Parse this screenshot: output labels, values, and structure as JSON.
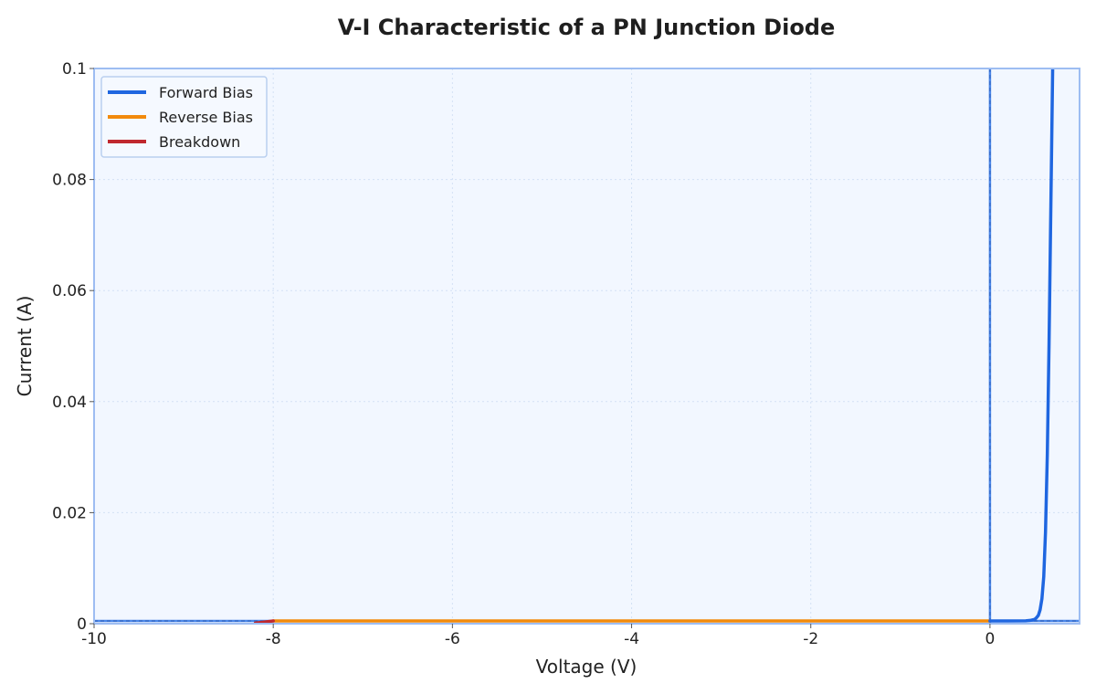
{
  "chart_data": {
    "type": "line",
    "title": "V-I Characteristic of a PN Junction Diode",
    "xlabel": "Voltage (V)",
    "ylabel": "Current (A)",
    "xlim": [
      -10,
      1
    ],
    "ylim": [
      0,
      0.1
    ],
    "x_ticks": [
      -10,
      -8,
      -6,
      -4,
      -2,
      0
    ],
    "x_tick_labels": [
      "-10",
      "-8",
      "-6",
      "-4",
      "-2",
      "0"
    ],
    "y_ticks": [
      0,
      0.02,
      0.04,
      0.06,
      0.08,
      0.1
    ],
    "y_tick_labels": [
      "0",
      "0.02",
      "0.04",
      "0.06",
      "0.08",
      "0.1"
    ],
    "grid": true,
    "legend_position": "top-left",
    "reference_lines": {
      "vertical_at_x": 0,
      "horizontal_at_y": 0
    },
    "series": [
      {
        "name": "Forward Bias",
        "color": "#1f66e0",
        "x": [
          0,
          0.2,
          0.4,
          0.45,
          0.5,
          0.52,
          0.54,
          0.56,
          0.58,
          0.6,
          0.62,
          0.64,
          0.66,
          0.68,
          0.7
        ],
        "y": [
          0,
          0,
          2e-05,
          0.0001,
          0.0003,
          0.0006,
          0.001,
          0.002,
          0.004,
          0.008,
          0.016,
          0.03,
          0.05,
          0.075,
          0.1
        ]
      },
      {
        "name": "Reverse Bias",
        "color": "#f28a0c",
        "x": [
          -8,
          -6,
          -4,
          -2,
          0
        ],
        "y": [
          0,
          0,
          0,
          0,
          0
        ]
      },
      {
        "name": "Breakdown",
        "color": "#c0282e",
        "x": [
          -8.2,
          -8.1,
          -8.0
        ],
        "y": [
          -0.0004,
          -0.0002,
          0
        ]
      }
    ]
  }
}
